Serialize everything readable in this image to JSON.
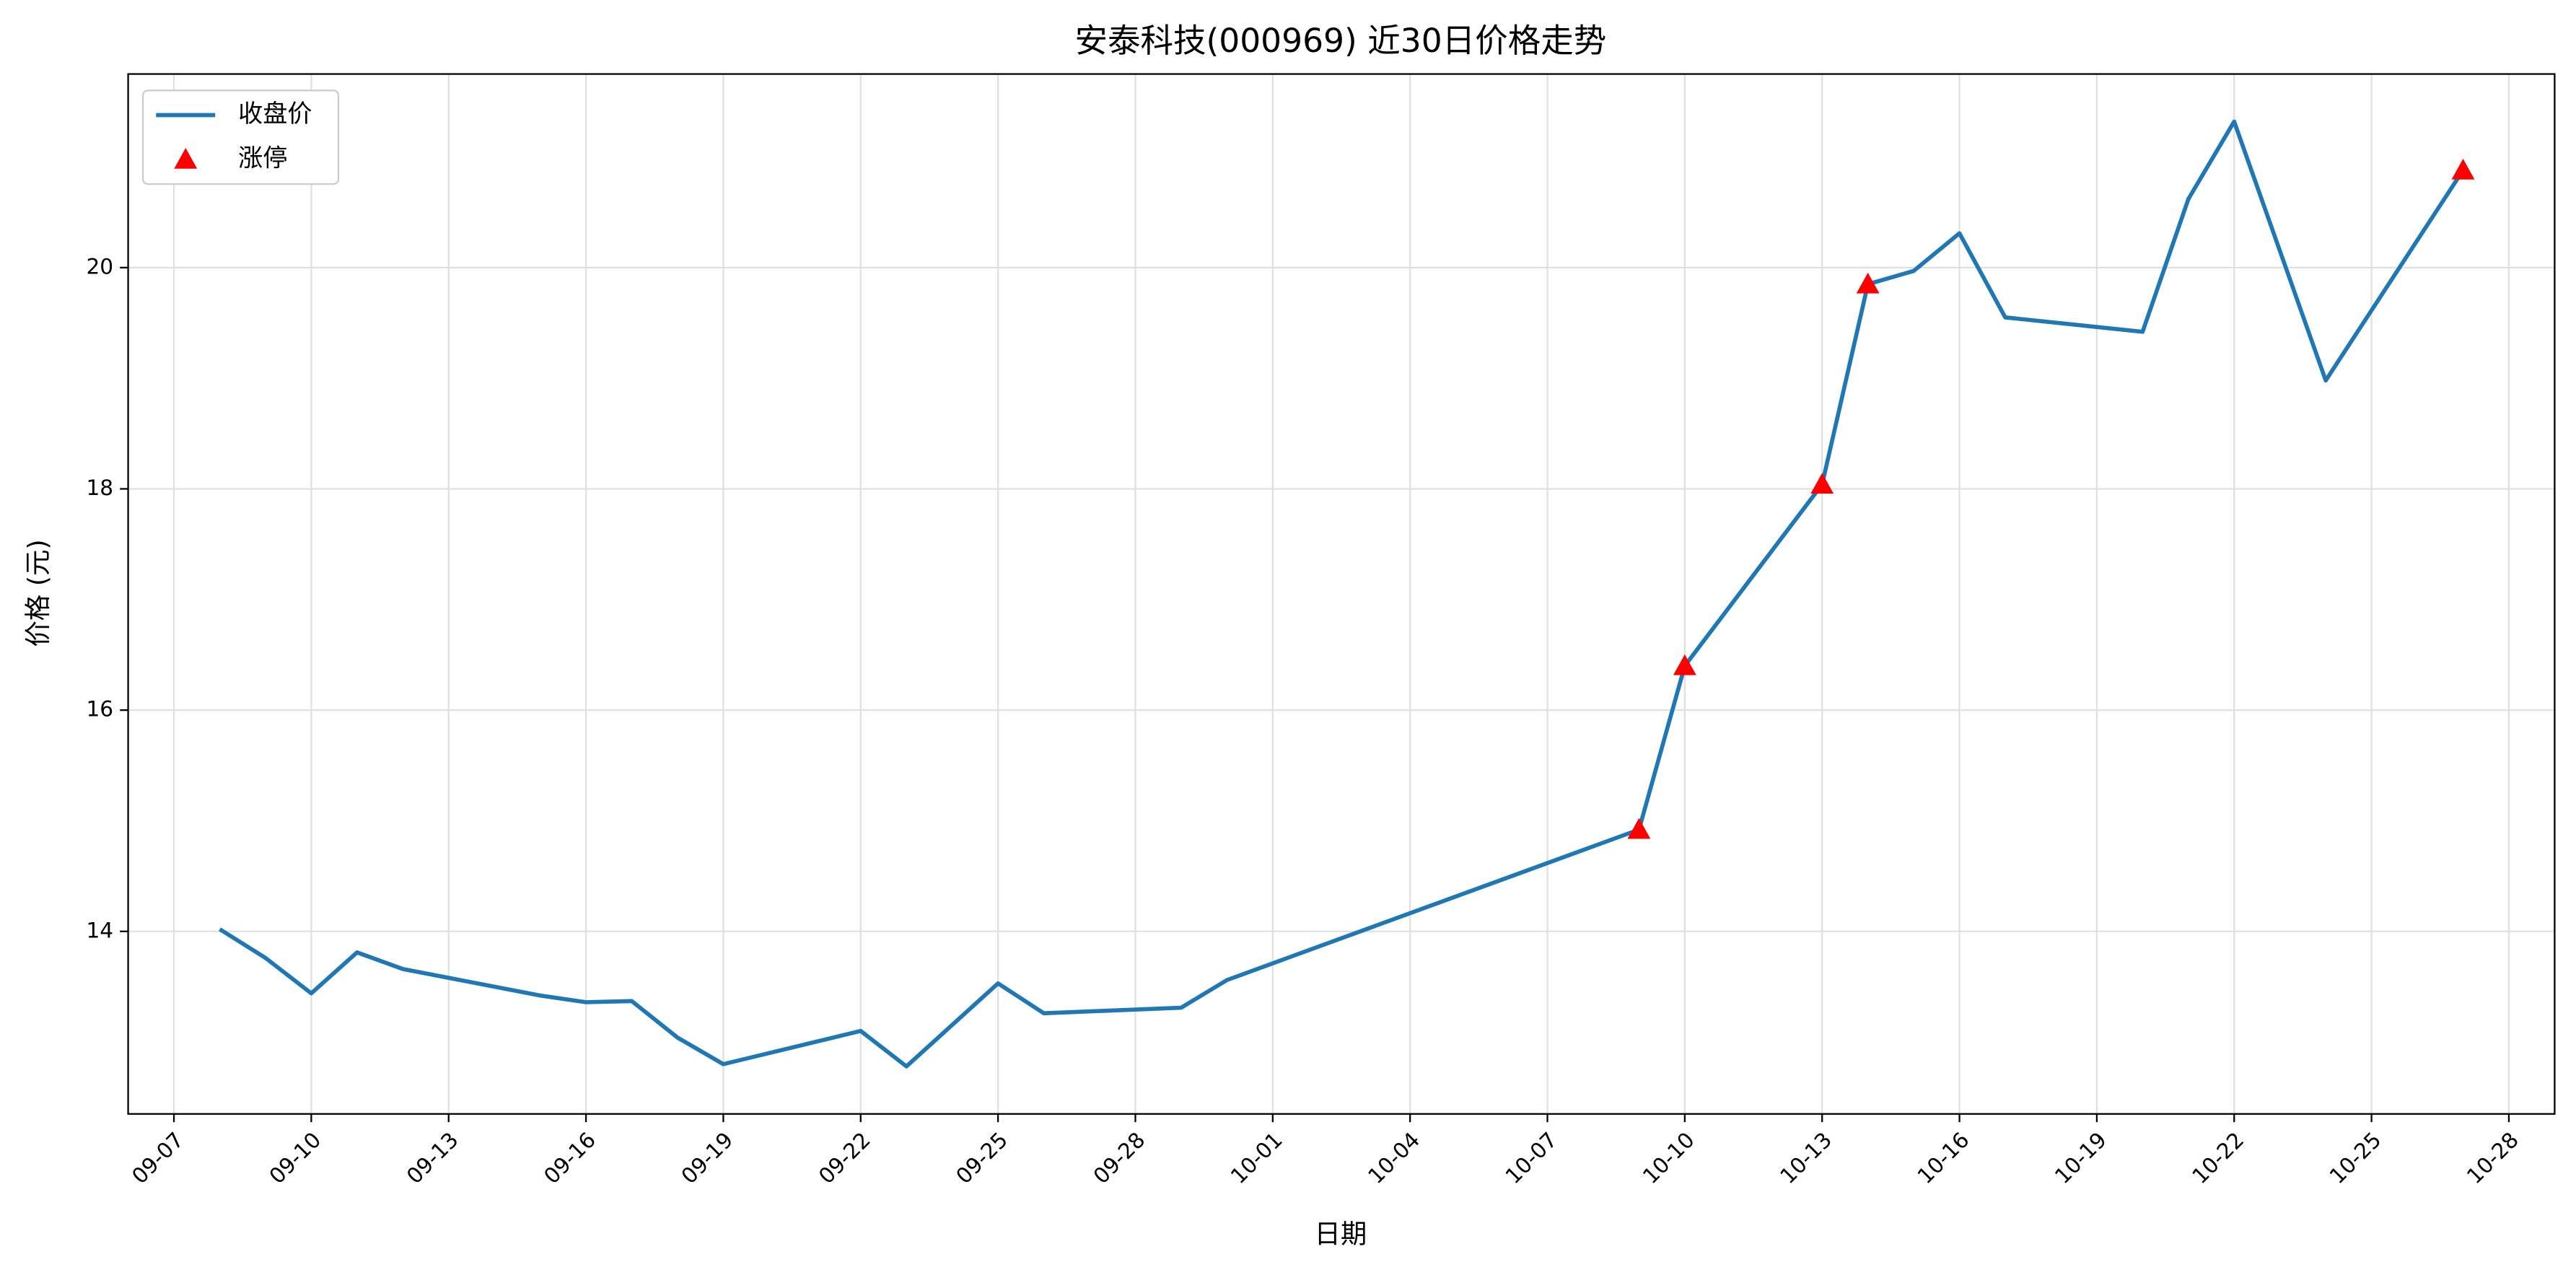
{
  "chart_data": {
    "type": "line",
    "title": "安泰科技(000969) 近30日价格走势",
    "x_label": "日期",
    "y_label": "价格 (元)",
    "series": [
      {
        "name": "收盘价",
        "type": "line",
        "color": "#1f77b4",
        "x": [
          "09-08",
          "09-09",
          "09-10",
          "09-11",
          "09-12",
          "09-15",
          "09-16",
          "09-17",
          "09-18",
          "09-19",
          "09-22",
          "09-23",
          "09-25",
          "09-26",
          "09-29",
          "09-30",
          "10-09",
          "10-10",
          "10-13",
          "10-14",
          "10-15",
          "10-16",
          "10-17",
          "10-20",
          "10-21",
          "10-22",
          "10-24",
          "10-27"
        ],
        "values": [
          14.02,
          13.76,
          13.44,
          13.81,
          13.66,
          13.42,
          13.36,
          13.37,
          13.04,
          12.8,
          13.1,
          12.78,
          13.53,
          13.26,
          13.31,
          13.56,
          14.92,
          16.4,
          18.04,
          19.85,
          19.97,
          20.31,
          19.55,
          19.42,
          20.62,
          21.32,
          18.98,
          20.88
        ]
      },
      {
        "name": "涨停",
        "type": "scatter",
        "color": "#ff0000",
        "x": [
          "10-09",
          "10-10",
          "10-13",
          "10-14",
          "10-27"
        ],
        "values": [
          14.92,
          16.4,
          18.04,
          19.85,
          20.88
        ]
      }
    ],
    "xlim": [
      "09-06",
      "10-29"
    ],
    "xticks": [
      "09-07",
      "09-10",
      "09-13",
      "09-16",
      "09-19",
      "09-22",
      "09-25",
      "09-28",
      "10-01",
      "10-04",
      "10-07",
      "10-10",
      "10-13",
      "10-16",
      "10-19",
      "10-22",
      "10-25",
      "10-28"
    ],
    "ylim": [
      12.35,
      21.75
    ],
    "yticks": [
      14,
      16,
      18,
      20
    ],
    "grid": true,
    "legend": "upper left"
  }
}
